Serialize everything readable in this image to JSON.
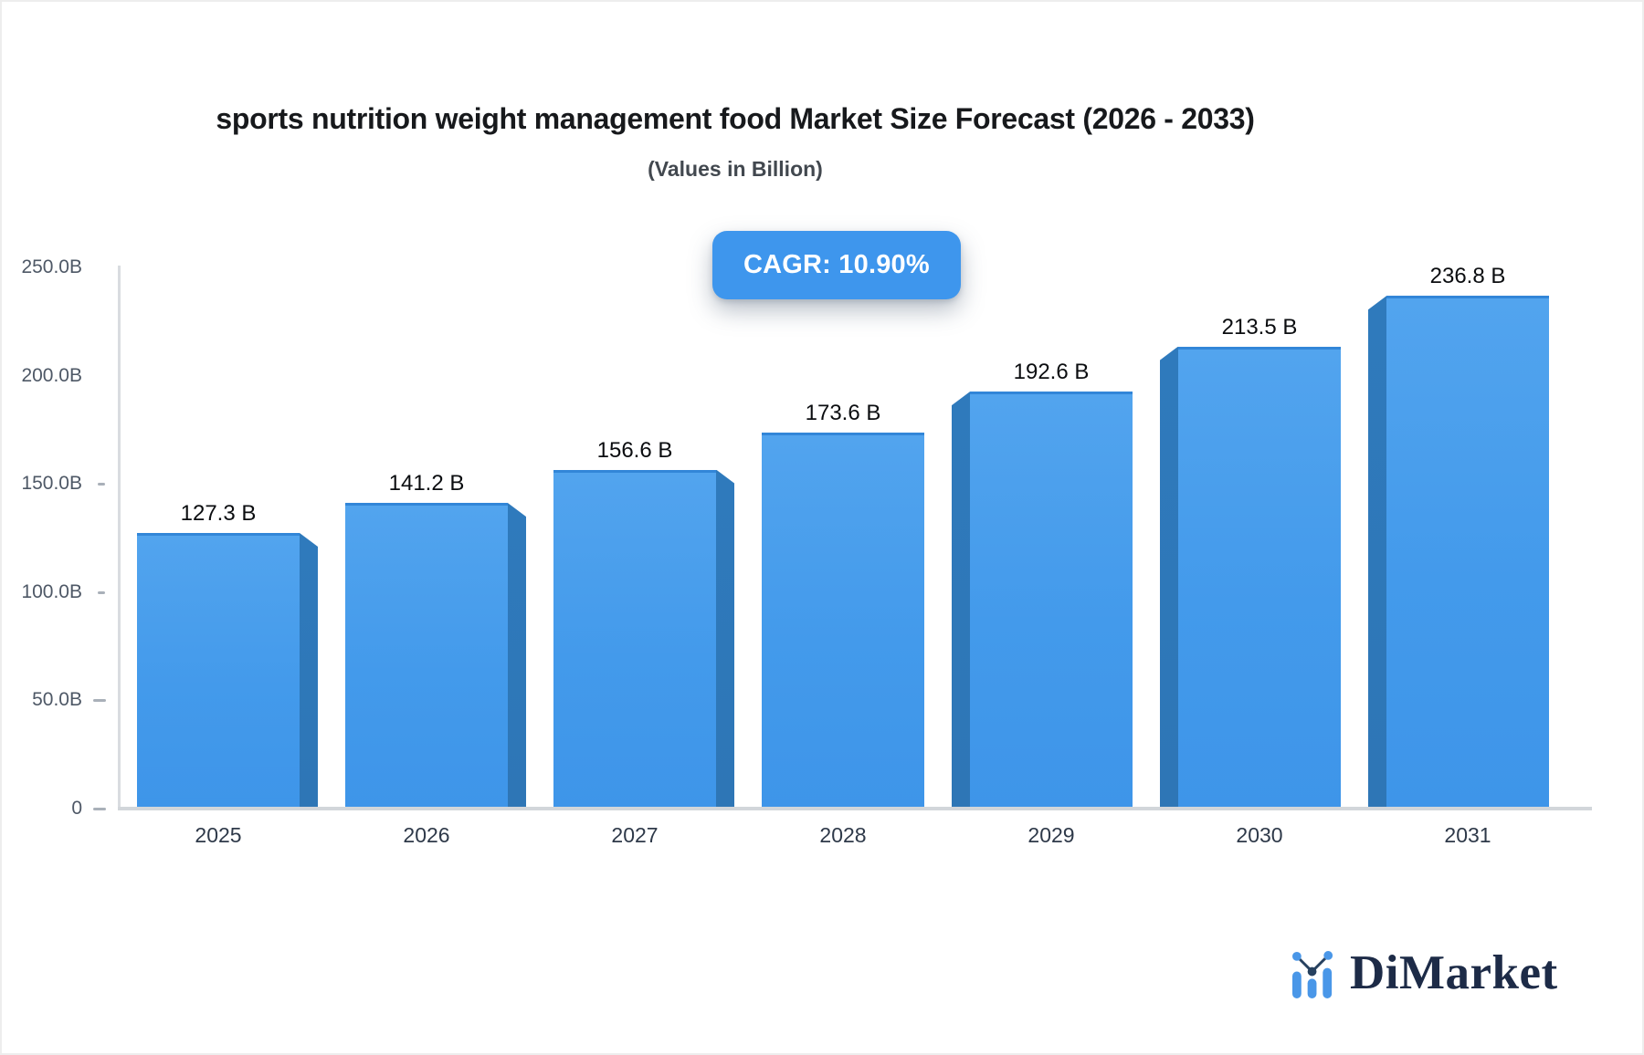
{
  "title": "sports nutrition weight management food Market Size Forecast (2026 - 2033)",
  "subtitle": "(Values in Billion)",
  "cagr": {
    "label": "CAGR: 10.90%"
  },
  "logo": {
    "name": "DiMarket",
    "icon": "bar-chart-trend-icon"
  },
  "chart_data": {
    "type": "bar",
    "title": "sports nutrition weight management food Market Size Forecast (2026 - 2033)",
    "subtitle": "(Values in Billion)",
    "unit": "Billion",
    "categories": [
      "2025",
      "2026",
      "2027",
      "2028",
      "2029",
      "2030",
      "2031"
    ],
    "values": [
      127.3,
      141.2,
      156.6,
      173.6,
      192.6,
      213.5,
      236.8
    ],
    "value_labels": [
      "127.3 B",
      "141.2 B",
      "156.6 B",
      "173.6 B",
      "192.6 B",
      "213.5 B",
      "236.8 B"
    ],
    "cagr_percent": 10.9,
    "xlabel": "",
    "ylabel": "",
    "ylim": [
      0,
      250
    ],
    "grid": false,
    "legend": "none",
    "y_ticks": [
      {
        "label": "250.0B",
        "value": 250,
        "tick_mark": false
      },
      {
        "label": "200.0B",
        "value": 200,
        "tick_mark": false
      },
      {
        "label": "150.0B",
        "value": 150,
        "tick_mark": true
      },
      {
        "label": "100.0B",
        "value": 100,
        "tick_mark": true
      },
      {
        "label": "50.0B",
        "value": 50,
        "tick_mark": true
      },
      {
        "label": "0",
        "value": 0,
        "tick_mark": true
      }
    ]
  },
  "colors": {
    "bar_face_top": "#52a4ee",
    "bar_face_bottom": "#3e95e9",
    "bar_top_edge": "#3286d8",
    "bar_side": "#2e77b8",
    "badge_bg": "#3e96ed",
    "badge_text": "#ffffff",
    "axis_line": "#d9dce0",
    "baseline": "#d2d6da",
    "logo_blue": "#4a97e8",
    "logo_navy": "#27415f",
    "logo_text": "#1d2b47"
  }
}
